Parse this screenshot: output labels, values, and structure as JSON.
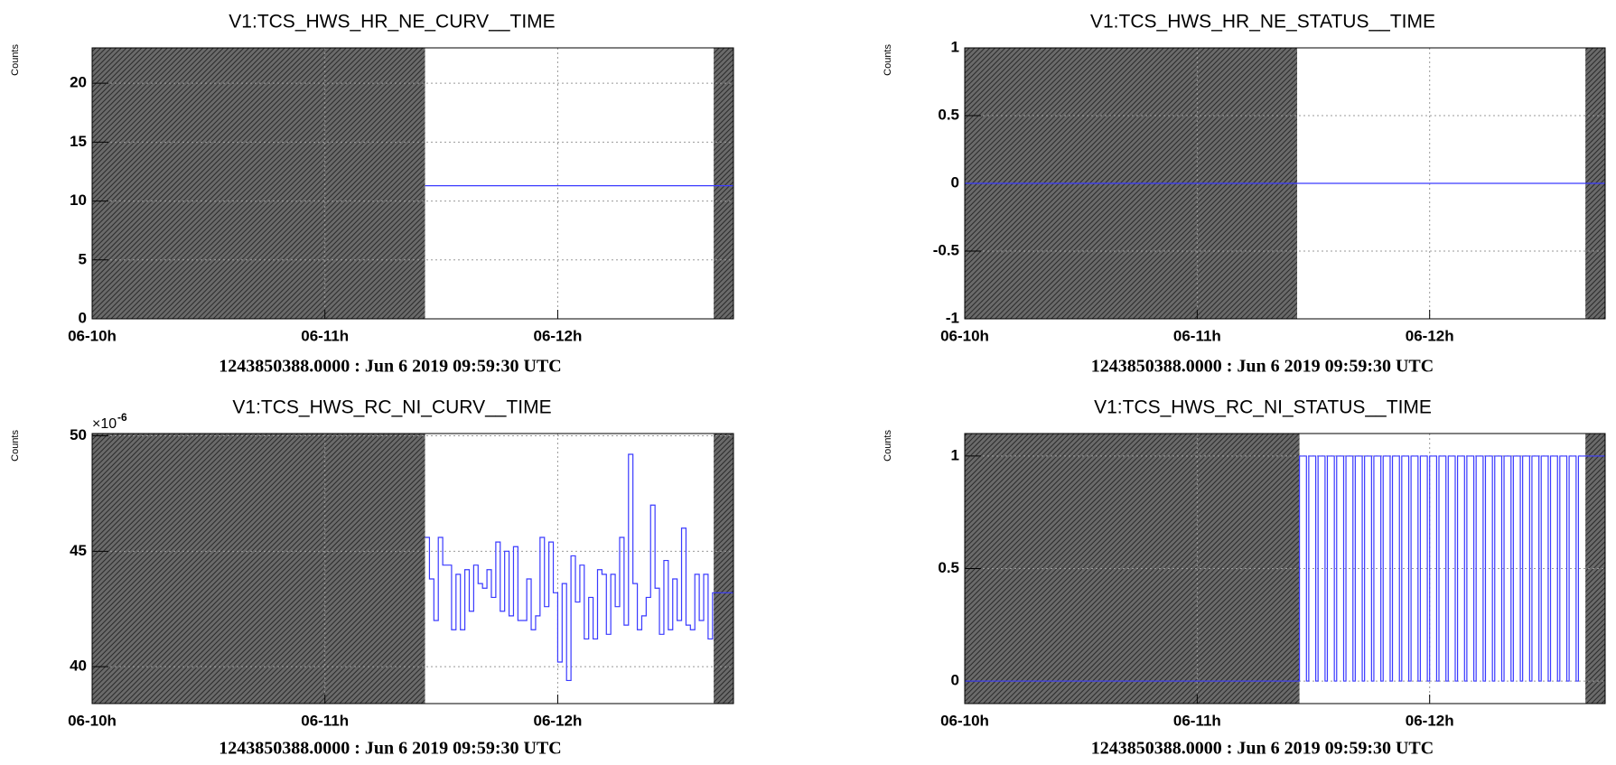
{
  "chart_data": [
    {
      "type": "line",
      "step": true,
      "title": "V1:TCS_HWS_HR_NE_CURV__TIME",
      "ylabel": "Counts",
      "footer": "1243850388.0000 : Jun  6 2019 09:59:30 UTC",
      "color": "#3a3aff",
      "grid": true,
      "xlim": [
        0,
        2.755
      ],
      "xticks": [
        {
          "value": 0,
          "label": "06-10h"
        },
        {
          "value": 1,
          "label": "06-11h"
        },
        {
          "value": 2,
          "label": "06-12h"
        }
      ],
      "ylim": [
        0,
        23
      ],
      "yticks": [
        0,
        5,
        10,
        15,
        20
      ],
      "shaded": [
        [
          0,
          1.43
        ],
        [
          2.67,
          2.755
        ]
      ],
      "x": [
        1.43,
        2.755
      ],
      "values": [
        11.3,
        11.3
      ]
    },
    {
      "type": "line",
      "step": true,
      "title": "V1:TCS_HWS_HR_NE_STATUS__TIME",
      "ylabel": "Counts",
      "footer": "1243850388.0000 : Jun  6 2019 09:59:30 UTC",
      "color": "#3a3aff",
      "grid": true,
      "xlim": [
        0,
        2.755
      ],
      "xticks": [
        {
          "value": 0,
          "label": "06-10h"
        },
        {
          "value": 1,
          "label": "06-11h"
        },
        {
          "value": 2,
          "label": "06-12h"
        }
      ],
      "ylim": [
        -1,
        1
      ],
      "yticks": [
        -1,
        -0.5,
        0,
        0.5,
        1
      ],
      "shaded": [
        [
          0,
          1.43
        ],
        [
          2.67,
          2.755
        ]
      ],
      "x": [
        0,
        2.755
      ],
      "values": [
        0,
        0
      ]
    },
    {
      "type": "line",
      "step": true,
      "title": "V1:TCS_HWS_RC_NI_CURV__TIME",
      "ylabel": "Counts",
      "footer": "1243850388.0000 : Jun  6 2019 09:59:30 UTC",
      "color": "#3a3aff",
      "grid": true,
      "y_multiplier": {
        "base": "×10",
        "exponent": "-6"
      },
      "xlim": [
        0,
        2.755
      ],
      "xticks": [
        {
          "value": 0,
          "label": "06-10h"
        },
        {
          "value": 1,
          "label": "06-11h"
        },
        {
          "value": 2,
          "label": "06-12h"
        }
      ],
      "ylim": [
        38.4,
        50.1
      ],
      "yticks": [
        40,
        45,
        50
      ],
      "shaded": [
        [
          0,
          1.43
        ],
        [
          2.67,
          2.755
        ]
      ],
      "x": [
        1.43,
        1.449,
        1.468,
        1.487,
        1.506,
        1.525,
        1.544,
        1.563,
        1.582,
        1.601,
        1.62,
        1.639,
        1.658,
        1.677,
        1.696,
        1.715,
        1.734,
        1.753,
        1.772,
        1.791,
        1.81,
        1.829,
        1.848,
        1.867,
        1.886,
        1.905,
        1.924,
        1.943,
        1.962,
        1.981,
        2.0,
        2.019,
        2.038,
        2.057,
        2.076,
        2.095,
        2.114,
        2.133,
        2.152,
        2.171,
        2.19,
        2.209,
        2.228,
        2.247,
        2.266,
        2.285,
        2.304,
        2.323,
        2.342,
        2.361,
        2.38,
        2.399,
        2.418,
        2.437,
        2.456,
        2.475,
        2.494,
        2.513,
        2.532,
        2.551,
        2.57,
        2.589,
        2.608,
        2.627,
        2.646,
        2.665,
        2.755
      ],
      "values": [
        45.6,
        43.8,
        42,
        45.6,
        44.4,
        44.4,
        41.6,
        44,
        41.6,
        44.2,
        42.4,
        44.4,
        43.6,
        43.4,
        44.2,
        43,
        45.4,
        42.4,
        45,
        42.2,
        45.2,
        42,
        42,
        43.8,
        41.6,
        42.2,
        45.6,
        42.6,
        45.4,
        43.2,
        40.2,
        43.6,
        39.4,
        44.8,
        42.8,
        44.4,
        41.2,
        43,
        41.2,
        44.2,
        44,
        41.4,
        44,
        42.6,
        45.6,
        41.8,
        49.2,
        43.6,
        41.6,
        42.2,
        43,
        47,
        43.4,
        41.4,
        44.6,
        41.6,
        43.8,
        42,
        46,
        41.8,
        41.6,
        44,
        42,
        44,
        41.2,
        43.2,
        43.2
      ]
    },
    {
      "type": "line",
      "step": true,
      "title": "V1:TCS_HWS_RC_NI_STATUS__TIME",
      "ylabel": "Counts",
      "footer": "1243850388.0000 : Jun  6 2019 09:59:30 UTC",
      "color": "#3a3aff",
      "grid": true,
      "xlim": [
        0,
        2.755
      ],
      "xticks": [
        {
          "value": 0,
          "label": "06-10h"
        },
        {
          "value": 1,
          "label": "06-11h"
        },
        {
          "value": 2,
          "label": "06-12h"
        }
      ],
      "ylim": [
        -0.1,
        1.1
      ],
      "yticks": [
        0,
        0.5,
        1
      ],
      "shaded": [
        [
          0,
          1.44
        ],
        [
          2.67,
          2.755
        ]
      ],
      "x": [
        0,
        1.44,
        1.47,
        1.48,
        1.51,
        1.52,
        1.55,
        1.56,
        1.59,
        1.6,
        1.63,
        1.64,
        1.67,
        1.68,
        1.71,
        1.72,
        1.75,
        1.76,
        1.79,
        1.8,
        1.83,
        1.84,
        1.87,
        1.88,
        1.91,
        1.92,
        1.95,
        1.96,
        1.99,
        2.0,
        2.03,
        2.04,
        2.07,
        2.08,
        2.11,
        2.12,
        2.15,
        2.16,
        2.19,
        2.2,
        2.23,
        2.24,
        2.27,
        2.28,
        2.31,
        2.32,
        2.35,
        2.36,
        2.39,
        2.4,
        2.43,
        2.44,
        2.47,
        2.48,
        2.51,
        2.52,
        2.55,
        2.56,
        2.59,
        2.6,
        2.63,
        2.64,
        2.755
      ],
      "values": [
        0,
        1,
        0,
        1,
        0,
        1,
        0,
        1,
        0,
        1,
        0,
        1,
        0,
        1,
        0,
        1,
        0,
        1,
        0,
        1,
        0,
        1,
        0,
        1,
        0,
        1,
        0,
        1,
        0,
        1,
        0,
        1,
        0,
        1,
        0,
        1,
        0,
        1,
        0,
        1,
        0,
        1,
        0,
        1,
        0,
        1,
        0,
        1,
        0,
        1,
        0,
        1,
        0,
        1,
        0,
        1,
        0,
        1,
        0,
        1,
        0,
        1,
        1
      ]
    }
  ]
}
